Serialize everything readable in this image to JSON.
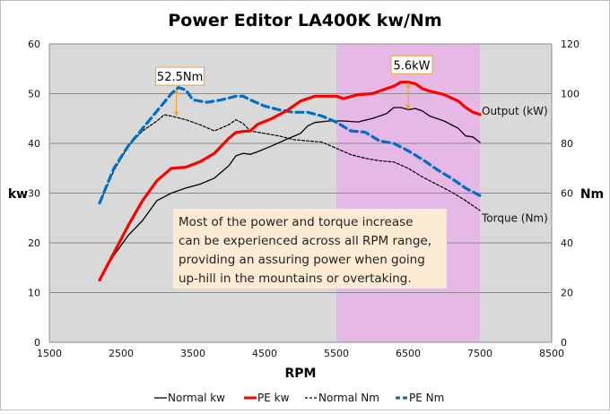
{
  "chart_data": {
    "type": "line",
    "title": "Power Editor LA400K kw/Nm",
    "xlabel": "RPM",
    "ylabel": "kw",
    "y2label": "Nm",
    "xlim": [
      1500,
      8500
    ],
    "ylim": [
      0,
      60
    ],
    "y2lim": [
      0,
      120
    ],
    "x_ticks": [
      "1500",
      "2500",
      "3500",
      "4500",
      "5500",
      "6500",
      "7500",
      "8500"
    ],
    "y_ticks": [
      "0",
      "10",
      "20",
      "30",
      "40",
      "50",
      "60"
    ],
    "y2_ticks": [
      "0",
      "20",
      "40",
      "60",
      "80",
      "100",
      "120"
    ],
    "highlight_range": [
      5500,
      7500
    ],
    "highlight_color": "#e6b8e6",
    "plot_background": "#d9d9d9",
    "grid": true,
    "legend_position": "bottom",
    "series": [
      {
        "name": "Normal kw",
        "axis": "left",
        "color": "#000000",
        "dash": "solid",
        "x": [
          2200,
          2400,
          2600,
          2800,
          3000,
          3200,
          3400,
          3600,
          3800,
          4000,
          4100,
          4200,
          4300,
          4400,
          4600,
          4800,
          5000,
          5100,
          5200,
          5400,
          5600,
          5800,
          6000,
          6200,
          6300,
          6400,
          6500,
          6600,
          6700,
          6800,
          7000,
          7200,
          7300,
          7400,
          7500
        ],
        "y": [
          12.5,
          17.5,
          21.5,
          24.5,
          28.5,
          30,
          31,
          31.8,
          33,
          35.5,
          37.5,
          38,
          37.8,
          38.3,
          39.5,
          40.8,
          42,
          43.5,
          44.2,
          44.5,
          44.5,
          44.3,
          45,
          46,
          47.2,
          47.2,
          46.8,
          47,
          46.5,
          45.5,
          44.5,
          43,
          41.5,
          41.3,
          40.2
        ]
      },
      {
        "name": "PE kw",
        "axis": "left",
        "color": "#ff0000",
        "dash": "solid",
        "x": [
          2200,
          2400,
          2600,
          2800,
          3000,
          3200,
          3400,
          3600,
          3800,
          4000,
          4100,
          4200,
          4300,
          4400,
          4600,
          4800,
          5000,
          5200,
          5400,
          5500,
          5600,
          5800,
          6000,
          6200,
          6300,
          6400,
          6500,
          6600,
          6700,
          6800,
          7000,
          7200,
          7300,
          7400,
          7500
        ],
        "y": [
          12.5,
          18,
          23.5,
          28.5,
          32.5,
          35,
          35.2,
          36.3,
          38,
          41,
          42.2,
          42.4,
          42.5,
          43.8,
          45,
          46.5,
          48.5,
          49.5,
          49.5,
          49.5,
          49,
          49.8,
          50,
          51,
          51.5,
          52.3,
          52.3,
          52,
          51,
          50.5,
          49.8,
          48.5,
          47.2,
          46.3,
          45.8
        ]
      },
      {
        "name": "Normal Nm",
        "axis": "right",
        "color": "#000000",
        "dash": "dashed",
        "x": [
          2200,
          2400,
          2600,
          2800,
          3000,
          3100,
          3200,
          3400,
          3600,
          3800,
          4000,
          4100,
          4200,
          4300,
          4500,
          4700,
          4900,
          5100,
          5300,
          5500,
          5700,
          5900,
          6100,
          6300,
          6500,
          6700,
          6900,
          7100,
          7300,
          7500
        ],
        "y": [
          56,
          69,
          79,
          85,
          89,
          91.5,
          91,
          89.5,
          87.5,
          85,
          87.5,
          89.5,
          88,
          85,
          84,
          83,
          81.5,
          81,
          80.5,
          78,
          75.5,
          74,
          73,
          72.5,
          70,
          66.5,
          63.5,
          60.5,
          57,
          53
        ]
      },
      {
        "name": "PE Nm",
        "axis": "right",
        "color": "#0070c0",
        "dash": "dashed-bold",
        "x": [
          2200,
          2400,
          2600,
          2800,
          3000,
          3200,
          3300,
          3400,
          3500,
          3700,
          3900,
          4100,
          4200,
          4300,
          4500,
          4700,
          4900,
          5100,
          5300,
          5500,
          5700,
          5900,
          6100,
          6300,
          6500,
          6700,
          6900,
          7100,
          7300,
          7500
        ],
        "y": [
          56,
          70,
          79,
          86,
          93,
          100,
          102.5,
          101.5,
          97.5,
          96.5,
          97.5,
          99,
          99,
          97.5,
          95,
          93.5,
          92.5,
          92.5,
          91,
          88.5,
          85,
          84.5,
          81,
          80,
          77,
          73.5,
          69.5,
          66,
          62,
          59
        ]
      }
    ],
    "series_labels": [
      {
        "text": "Output (kW)",
        "x": 7500,
        "y": 46.5
      },
      {
        "text": "Torque (Nm)",
        "x": 7500,
        "y": 25
      }
    ],
    "annotations": [
      {
        "text": "52.5Nm",
        "x": 3270,
        "y": 53.5,
        "arrow_from": 45.5,
        "arrow_to": 50.8
      },
      {
        "text": "5.6kW",
        "x": 6500,
        "y": 55.8,
        "arrow_from": 46.8,
        "arrow_to": 52.2
      }
    ],
    "note": {
      "lines": [
        "Most of the power and torque increase",
        "can be experienced across all RPM range,",
        "providing an assuring power when going",
        "up-hill in the mountains or overtaking."
      ]
    }
  }
}
